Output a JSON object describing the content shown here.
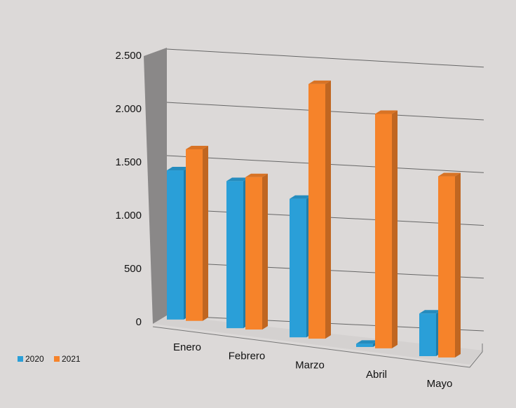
{
  "chart_data": {
    "type": "bar3d",
    "categories": [
      "Enero",
      "Febrero",
      "Marzo",
      "Abril",
      "Mayo"
    ],
    "series": [
      {
        "name": "2020",
        "color": "#2a9fd8",
        "values": [
          1400,
          1380,
          1300,
          30,
          400
        ]
      },
      {
        "name": "2021",
        "color": "#f6832a",
        "values": [
          1610,
          1430,
          2390,
          2200,
          1700
        ]
      }
    ],
    "ylim": [
      0,
      2500
    ],
    "yticks": [
      0,
      500,
      {
        "value": 1000,
        "label": "1.000"
      },
      {
        "value": 1500,
        "label": "1.500"
      },
      {
        "value": 2000,
        "label": "2.000"
      },
      {
        "value": 2500,
        "label": "2.500"
      }
    ],
    "grid": true,
    "legend": "bottom-left"
  }
}
